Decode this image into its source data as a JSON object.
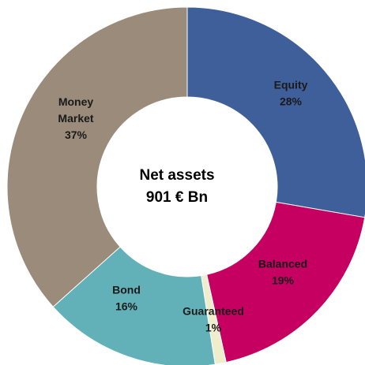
{
  "chart_data": {
    "type": "pie",
    "variant": "donut",
    "center_text": [
      "Net assets",
      "901 € Bn"
    ],
    "slices": [
      {
        "label_lines": [
          "Equity",
          "28%"
        ],
        "value": 28,
        "color": "#3e5f9a"
      },
      {
        "label_lines": [
          "Balanced",
          "19%"
        ],
        "value": 19,
        "color": "#c50060"
      },
      {
        "label_lines": [
          "Guaranteed",
          "1%"
        ],
        "value": 1,
        "color": "#eeeecc"
      },
      {
        "label_lines": [
          "Bond",
          "16%"
        ],
        "value": 16,
        "color": "#62b1b8"
      },
      {
        "label_lines": [
          "Money",
          "Market",
          "37%"
        ],
        "value": 37,
        "color": "#9a8b7a"
      }
    ],
    "start_angle_deg": 0,
    "direction": "clockwise",
    "legend": "none"
  }
}
